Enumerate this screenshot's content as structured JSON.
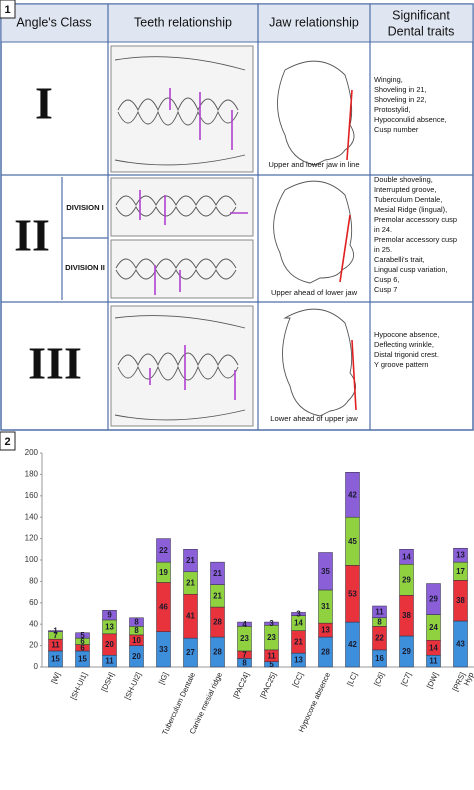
{
  "figure": {
    "panel_label": "1",
    "headers": [
      "Angle's Class",
      "Teeth relationship",
      "Jaw relationship",
      [
        "Significant",
        "Dental traits"
      ]
    ],
    "rows": [
      {
        "class": "I",
        "jaw_caption": "Upper and lower jaw in line",
        "traits": [
          "Winging,",
          "Shoveling in 21,",
          "Shoveling in 22,",
          "Protostylid,",
          "Hypoconulid absence,",
          "Cusp number"
        ]
      },
      {
        "class": "II",
        "divisions": [
          "DIVISION I",
          "DIVISION II"
        ],
        "jaw_caption": "Upper ahead of lower jaw",
        "traits": [
          "Double shoveling,",
          "Interrupted groove,",
          "Tuberculum Dentale,",
          "Mesial Ridge (lingual),",
          "Premolar accessory cusp",
          "in 24.",
          "Premolar accessory cusp",
          "in 25.",
          "Carabelli's trait,",
          "Lingual cusp variation,",
          "Cusp 6,",
          "Cusp 7"
        ]
      },
      {
        "class": "III",
        "jaw_caption": "Lower ahead of upper jaw",
        "traits": [
          "Hypocone absence,",
          "Deflecting wrinkle,",
          "Distal trigonid crest.",
          "Y groove pattern"
        ]
      }
    ]
  },
  "chart_label": "2",
  "chart_data": {
    "type": "stacked_bar",
    "categories": [
      "[W]",
      "[SH-UI1]",
      "[DSH]",
      "[SH-UI2]",
      "[IG]",
      "Tuberculum Dentale",
      "Canine mesial ridge",
      "[PAC24]",
      "[PAC25]",
      "[CC]",
      "Hypocone absence",
      "[LC]",
      "[C6]",
      "[C7]",
      "[DW]",
      "[PRS]",
      "Hyp"
    ],
    "series": [
      {
        "color": "#3d8fdb",
        "values": [
          15,
          15,
          11,
          20,
          33,
          27,
          28,
          8,
          5,
          13,
          28,
          42,
          16,
          29,
          11,
          43,
          null
        ]
      },
      {
        "color": "#e8333c",
        "values": [
          11,
          6,
          20,
          10,
          46,
          41,
          28,
          7,
          11,
          21,
          13,
          53,
          22,
          38,
          14,
          38,
          null
        ]
      },
      {
        "color": "#8fd13f",
        "values": [
          7,
          6,
          13,
          8,
          19,
          21,
          21,
          23,
          23,
          14,
          31,
          45,
          8,
          29,
          24,
          17,
          null
        ]
      },
      {
        "color": "#8a5fd8",
        "values": [
          1,
          5,
          9,
          8,
          22,
          21,
          21,
          4,
          3,
          3,
          35,
          42,
          11,
          14,
          29,
          13,
          null
        ]
      }
    ],
    "ylim": [
      0,
      200
    ],
    "yticks": [
      0,
      20,
      40,
      60,
      80,
      100,
      120,
      140,
      160,
      180,
      200
    ],
    "grid": false
  }
}
